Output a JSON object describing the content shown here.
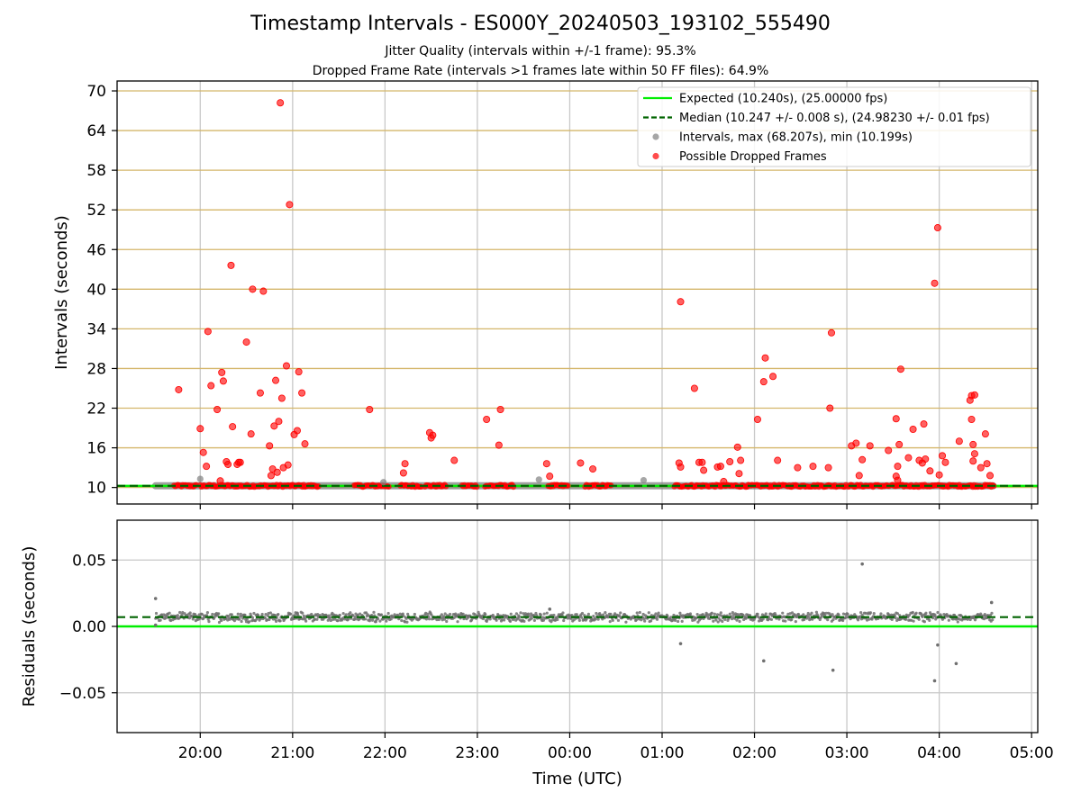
{
  "figure": {
    "title": "Timestamp Intervals - ES000Y_20240503_193102_555490",
    "subtitle_1": "Jitter Quality (intervals within +/-1 frame): 95.3%",
    "subtitle_2": "Dropped Frame Rate (intervals >1 frames late within 50 FF files): 64.9%"
  },
  "colors": {
    "expected_line": "#00ee00",
    "median_line": "#006400",
    "intervals_points": "#808080",
    "dropped_points": "#ff0000",
    "gold_grid": "#d4b66a",
    "grey_grid": "#c8c8c8"
  },
  "chart_data": [
    {
      "type": "scatter",
      "panel": "top",
      "xlabel": "",
      "ylabel": "Intervals (seconds)",
      "xlim": [
        "19:06",
        "05:04"
      ],
      "ylim": [
        7.5,
        71.5
      ],
      "y_ticks": [
        10,
        16,
        22,
        28,
        34,
        40,
        46,
        52,
        58,
        64,
        70
      ],
      "x_ticks": [
        "20:00",
        "21:00",
        "22:00",
        "23:00",
        "00:00",
        "01:00",
        "02:00",
        "03:00",
        "04:00",
        "05:00"
      ],
      "grid": "horizontal gold lines at y ticks, vertical grey lines at x ticks",
      "legend_position": "top-right",
      "legend": [
        "Expected (10.240s), (25.00000 fps)",
        "Median (10.247 +/- 0.008 s), (24.98230 +/- 0.01 fps)",
        "Intervals, max (68.207s), min (10.199s)",
        "Possible Dropped Frames"
      ],
      "expected_value": 10.24,
      "median_value": 10.247,
      "baseline_intervals": {
        "y": 10.25,
        "x_start": "19:31",
        "x_end": "04:35"
      },
      "dropped_baseline_segments": [
        [
          "19:43",
          "19:58"
        ],
        [
          "20:00",
          "21:17"
        ],
        [
          "21:40",
          "22:03"
        ],
        [
          "22:10",
          "22:24"
        ],
        [
          "22:26",
          "22:40"
        ],
        [
          "22:50",
          "23:00"
        ],
        [
          "23:05",
          "23:24"
        ],
        [
          "23:46",
          "23:59"
        ],
        [
          "00:10",
          "00:27"
        ],
        [
          "01:08",
          "02:20"
        ],
        [
          "02:21",
          "03:00"
        ],
        [
          "03:01",
          "03:28"
        ],
        [
          "03:29",
          "04:36"
        ]
      ],
      "intervals_outliers": [
        [
          "20:00",
          11.3
        ],
        [
          "21:59",
          10.8
        ],
        [
          "23:40",
          11.2
        ],
        [
          "00:48",
          11.1
        ]
      ],
      "dropped_outliers": [
        [
          "19:46",
          24.8
        ],
        [
          "20:00",
          18.9
        ],
        [
          "20:02",
          15.3
        ],
        [
          "20:04",
          13.2
        ],
        [
          "20:05",
          33.6
        ],
        [
          "20:07",
          25.4
        ],
        [
          "20:11",
          21.8
        ],
        [
          "20:13",
          11.0
        ],
        [
          "20:14",
          27.4
        ],
        [
          "20:15",
          26.1
        ],
        [
          "20:17",
          13.9
        ],
        [
          "20:18",
          13.5
        ],
        [
          "20:20",
          43.6
        ],
        [
          "20:21",
          19.2
        ],
        [
          "20:24",
          13.5
        ],
        [
          "20:25",
          13.8
        ],
        [
          "20:26",
          13.8
        ],
        [
          "20:30",
          32.0
        ],
        [
          "20:33",
          18.1
        ],
        [
          "20:34",
          40.0
        ],
        [
          "20:39",
          24.3
        ],
        [
          "20:41",
          39.7
        ],
        [
          "20:45",
          16.3
        ],
        [
          "20:46",
          11.8
        ],
        [
          "20:47",
          12.8
        ],
        [
          "20:48",
          19.3
        ],
        [
          "20:49",
          26.2
        ],
        [
          "20:50",
          12.3
        ],
        [
          "20:51",
          20.0
        ],
        [
          "20:52",
          68.2
        ],
        [
          "20:53",
          23.5
        ],
        [
          "20:54",
          13.0
        ],
        [
          "20:56",
          28.4
        ],
        [
          "20:57",
          13.4
        ],
        [
          "20:58",
          52.8
        ],
        [
          "21:01",
          18.0
        ],
        [
          "21:03",
          18.6
        ],
        [
          "21:04",
          27.5
        ],
        [
          "21:06",
          24.3
        ],
        [
          "21:08",
          16.6
        ],
        [
          "21:50",
          21.8
        ],
        [
          "22:13",
          13.6
        ],
        [
          "22:12",
          12.2
        ],
        [
          "22:29",
          18.3
        ],
        [
          "22:30",
          17.5
        ],
        [
          "22:31",
          17.9
        ],
        [
          "22:45",
          14.1
        ],
        [
          "23:06",
          20.3
        ],
        [
          "23:14",
          16.4
        ],
        [
          "23:15",
          21.8
        ],
        [
          "23:45",
          13.6
        ],
        [
          "23:47",
          11.7
        ],
        [
          "24:15",
          12.8
        ],
        [
          "24:07",
          13.7
        ],
        [
          "25:11",
          13.7
        ],
        [
          "25:12",
          13.1
        ],
        [
          "25:12",
          38.1
        ],
        [
          "25:21",
          25.0
        ],
        [
          "25:24",
          13.8
        ],
        [
          "25:26",
          13.8
        ],
        [
          "25:27",
          12.6
        ],
        [
          "25:36",
          13.1
        ],
        [
          "25:38",
          13.2
        ],
        [
          "25:40",
          10.9
        ],
        [
          "25:44",
          13.9
        ],
        [
          "25:49",
          16.1
        ],
        [
          "25:50",
          12.1
        ],
        [
          "25:51",
          14.1
        ],
        [
          "26:02",
          20.3
        ],
        [
          "26:06",
          26.0
        ],
        [
          "26:07",
          29.6
        ],
        [
          "26:12",
          26.8
        ],
        [
          "26:15",
          14.1
        ],
        [
          "26:28",
          13.0
        ],
        [
          "26:38",
          13.2
        ],
        [
          "26:48",
          13.0
        ],
        [
          "26:49",
          22.0
        ],
        [
          "26:50",
          33.4
        ],
        [
          "27:03",
          16.3
        ],
        [
          "27:06",
          16.7
        ],
        [
          "27:08",
          11.8
        ],
        [
          "27:10",
          14.2
        ],
        [
          "27:15",
          16.3
        ],
        [
          "27:27",
          15.6
        ],
        [
          "27:32",
          20.4
        ],
        [
          "27:32",
          11.7
        ],
        [
          "27:33",
          11.1
        ],
        [
          "27:33",
          13.2
        ],
        [
          "27:34",
          16.5
        ],
        [
          "27:35",
          27.9
        ],
        [
          "27:40",
          14.5
        ],
        [
          "27:43",
          18.8
        ],
        [
          "27:47",
          14.1
        ],
        [
          "27:49",
          13.7
        ],
        [
          "27:50",
          19.6
        ],
        [
          "27:51",
          14.3
        ],
        [
          "27:54",
          12.5
        ],
        [
          "27:57",
          40.9
        ],
        [
          "27:59",
          49.3
        ],
        [
          "28:00",
          11.9
        ],
        [
          "28:02",
          14.8
        ],
        [
          "28:04",
          13.8
        ],
        [
          "28:13",
          17.0
        ],
        [
          "28:20",
          23.2
        ],
        [
          "28:21",
          23.9
        ],
        [
          "28:21",
          20.3
        ],
        [
          "28:22",
          16.5
        ],
        [
          "28:22",
          14.0
        ],
        [
          "28:23",
          15.1
        ],
        [
          "28:23",
          24.0
        ],
        [
          "28:27",
          13.0
        ],
        [
          "28:30",
          18.1
        ],
        [
          "28:31",
          13.6
        ],
        [
          "28:33",
          11.8
        ]
      ]
    },
    {
      "type": "scatter",
      "panel": "bottom",
      "xlabel": "Time (UTC)",
      "ylabel": "Residuals (seconds)",
      "xlim": [
        "19:06",
        "05:04"
      ],
      "ylim": [
        -0.08,
        0.08
      ],
      "y_ticks": [
        -0.05,
        0.0,
        0.05
      ],
      "y_tick_labels": [
        "−0.05",
        "0.00",
        "0.05"
      ],
      "x_ticks": [
        "20:00",
        "21:00",
        "22:00",
        "23:00",
        "00:00",
        "01:00",
        "02:00",
        "03:00",
        "04:00",
        "05:00"
      ],
      "grid": "grey grid on x and y ticks",
      "expected_residual": 0.0,
      "median_residual": 0.007,
      "dense_band": {
        "x_start": "19:31",
        "x_end": "04:35",
        "center": 0.007,
        "spread": 0.004
      },
      "residual_outliers": [
        [
          "19:31",
          0.021
        ],
        [
          "19:31",
          0.001
        ],
        [
          "21:03",
          0.01
        ],
        [
          "23:47",
          0.013
        ],
        [
          "01:12",
          -0.013
        ],
        [
          "02:06",
          -0.026
        ],
        [
          "02:51",
          -0.033
        ],
        [
          "03:10",
          0.047
        ],
        [
          "03:57",
          -0.041
        ],
        [
          "03:59",
          -0.014
        ],
        [
          "04:11",
          -0.028
        ],
        [
          "04:34",
          0.018
        ]
      ]
    }
  ]
}
